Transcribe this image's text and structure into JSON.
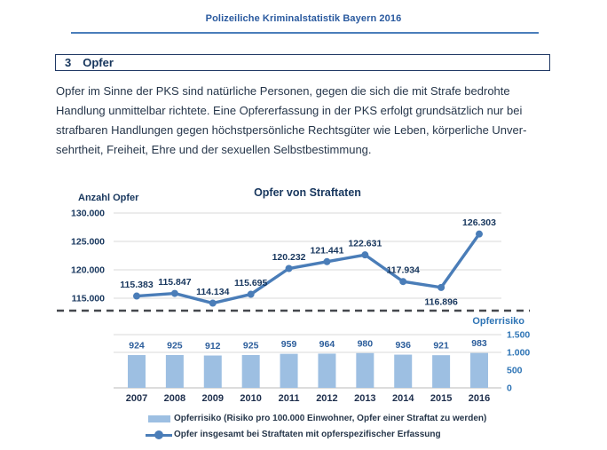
{
  "header": {
    "title": "Polizeiliche Kriminalstatistik Bayern 2016"
  },
  "section": {
    "number": "3",
    "title": "Opfer"
  },
  "body": {
    "lines": [
      "Opfer im Sinne der PKS sind natürliche Personen, gegen die sich die mit Strafe bedrohte",
      "Handlung unmittelbar richtete. Eine Opfererfassung in der PKS erfolgt grundsätzlich nur bei",
      "strafbaren Handlungen gegen höchstpersönliche Rechtsgüter wie Leben, körperliche Unver-",
      "sehrtheit, Freiheit, Ehre und der sexuellen Selbstbestimmung."
    ]
  },
  "chart_data": {
    "type": "combo",
    "title": "Opfer von Straftaten",
    "primary_axis_label": "Anzahl Opfer",
    "secondary_axis_label": "Opferrisiko",
    "categories": [
      "2007",
      "2008",
      "2009",
      "2010",
      "2011",
      "2012",
      "2013",
      "2014",
      "2015",
      "2016"
    ],
    "series": [
      {
        "name": "Opfer insgesamt bei Straftaten mit opferspezifischer Erfassung",
        "type": "line",
        "axis": "primary",
        "color": "#4a7db8",
        "values": [
          115383,
          115847,
          114134,
          115695,
          120232,
          121441,
          122631,
          117934,
          116896,
          126303
        ],
        "labels": [
          "115.383",
          "115.847",
          "114.134",
          "115.695",
          "120.232",
          "121.441",
          "122.631",
          "117.934",
          "116.896",
          "126.303"
        ],
        "label_positions": [
          "above",
          "above",
          "above",
          "above",
          "above",
          "above",
          "above",
          "above",
          "below",
          "above"
        ]
      },
      {
        "name": "Opferrisiko (Risiko pro 100.000 Einwohner, Opfer einer Straftat zu werden)",
        "type": "bar",
        "axis": "secondary",
        "color": "#9dbfe2",
        "values": [
          924,
          925,
          912,
          925,
          959,
          964,
          980,
          936,
          921,
          983
        ],
        "labels": [
          "924",
          "925",
          "912",
          "925",
          "959",
          "964",
          "980",
          "936",
          "921",
          "983"
        ]
      }
    ],
    "primary_ticks": [
      {
        "label": "115.000",
        "value": 115000
      },
      {
        "label": "120.000",
        "value": 120000
      },
      {
        "label": "125.000",
        "value": 125000
      },
      {
        "label": "130.000",
        "value": 130000
      }
    ],
    "secondary_ticks": [
      {
        "label": "0",
        "value": 0
      },
      {
        "label": "500",
        "value": 500
      },
      {
        "label": "1.000",
        "value": 1000
      },
      {
        "label": "1.500",
        "value": 1500
      }
    ],
    "primary_range": [
      115000,
      130000
    ],
    "secondary_range": [
      0,
      1500
    ],
    "grid": "horizontal-light",
    "legend_position": "bottom",
    "colors": {
      "grid": "#d9d9d9",
      "axis_baseline": "#c6c6c6",
      "dashed_separator": "#45484e",
      "primary_tick_text": "#17365d",
      "secondary_tick_text": "#2e74b5",
      "data_label_text": "#17365d",
      "bar_label_text": "#2b5d9b",
      "category_text": "#1e2f4d",
      "title_text": "#17365d"
    }
  }
}
